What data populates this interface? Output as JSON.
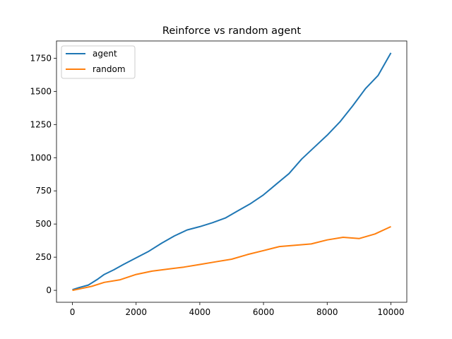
{
  "chart_data": {
    "type": "line",
    "title": "Reinforce vs random agent",
    "xlabel": "",
    "ylabel": "",
    "xlim": [
      -500,
      10500
    ],
    "ylim": [
      -90,
      1880
    ],
    "xticks": [
      0,
      2000,
      4000,
      6000,
      8000,
      10000
    ],
    "yticks": [
      0,
      250,
      500,
      750,
      1000,
      1250,
      1500,
      1750
    ],
    "grid": false,
    "legend_position": "top-left",
    "series": [
      {
        "name": "agent",
        "color": "#1f77b4",
        "x": [
          0,
          200,
          500,
          800,
          1000,
          1300,
          1600,
          2000,
          2400,
          2800,
          3200,
          3600,
          4000,
          4400,
          4800,
          5200,
          5600,
          6000,
          6400,
          6800,
          7200,
          7600,
          8000,
          8400,
          8800,
          9200,
          9600,
          10000
        ],
        "y": [
          5,
          20,
          40,
          85,
          120,
          155,
          195,
          245,
          295,
          355,
          410,
          455,
          480,
          510,
          545,
          600,
          655,
          720,
          800,
          880,
          990,
          1080,
          1170,
          1270,
          1390,
          1520,
          1620,
          1790
        ]
      },
      {
        "name": "random",
        "color": "#ff7f0e",
        "x": [
          0,
          300,
          600,
          1000,
          1500,
          2000,
          2500,
          3000,
          3500,
          4000,
          4500,
          5000,
          5500,
          6000,
          6500,
          7000,
          7500,
          8000,
          8500,
          9000,
          9500,
          10000
        ],
        "y": [
          0,
          15,
          30,
          60,
          80,
          120,
          145,
          160,
          175,
          195,
          215,
          235,
          270,
          300,
          330,
          340,
          350,
          380,
          400,
          390,
          425,
          480
        ]
      }
    ]
  }
}
